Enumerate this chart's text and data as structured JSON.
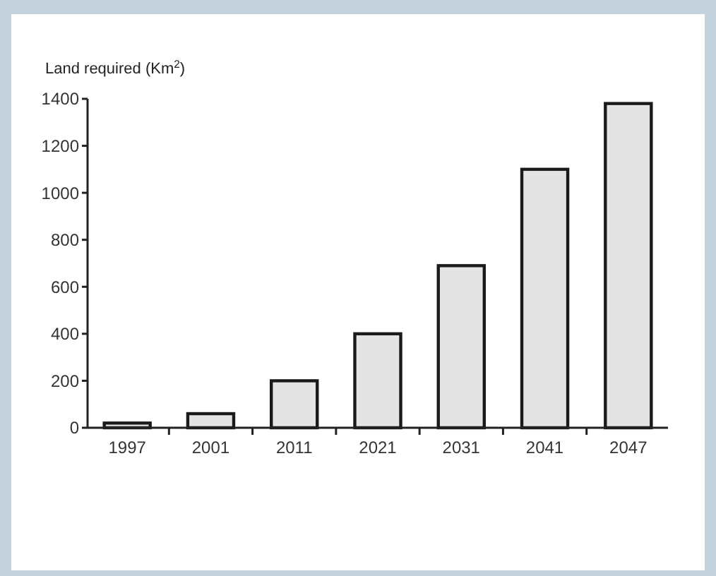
{
  "chart_data": {
    "type": "bar",
    "ylabel": "Land required (Km$^{2}$)",
    "categories": [
      "1997",
      "2001",
      "2011",
      "2021",
      "2031",
      "2041",
      "2047"
    ],
    "values": [
      20,
      60,
      200,
      400,
      690,
      1100,
      1380
    ],
    "color": "#e4e4e4",
    "ylim": [
      0,
      1400
    ],
    "yticks": [
      0,
      200,
      400,
      600,
      800,
      1000,
      1200,
      1400
    ],
    "grid": false
  }
}
